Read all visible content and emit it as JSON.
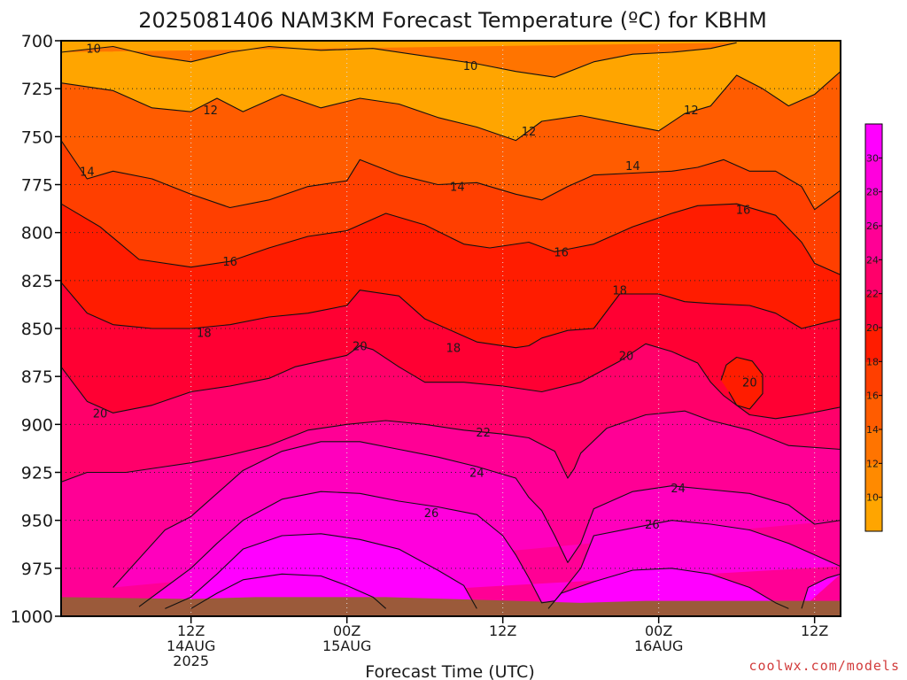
{
  "colors": {
    "ground": "#9b5a3a",
    "grid": "#222222",
    "frame": "#000000",
    "credit": "#d23c3c"
  },
  "chart_data": {
    "type": "heatmap",
    "title": "2025081406 NAM3KM Forecast Temperature (ºC) for KBHM",
    "xlabel": "Forecast Time (UTC)",
    "ylabel": "",
    "y_scale": "pressure (hPa), increasing downward",
    "ylim": [
      700,
      1000
    ],
    "xlim_hours_from_12Z_14AUG": [
      -10,
      50
    ],
    "y_ticks": [
      700,
      725,
      750,
      775,
      800,
      825,
      850,
      875,
      900,
      925,
      950,
      975,
      1000
    ],
    "x_ticks": [
      {
        "hour": 0,
        "lines": [
          "12Z",
          "14AUG",
          "2025"
        ]
      },
      {
        "hour": 12,
        "lines": [
          "00Z",
          "15AUG"
        ]
      },
      {
        "hour": 24,
        "lines": [
          "12Z"
        ]
      },
      {
        "hour": 36,
        "lines": [
          "00Z",
          "16AUG"
        ]
      },
      {
        "hour": 48,
        "lines": [
          "12Z"
        ]
      }
    ],
    "grid": true,
    "colorbar": {
      "placement": "right",
      "levels": [
        8,
        10,
        12,
        14,
        16,
        18,
        20,
        22,
        24,
        26,
        28,
        30,
        32
      ],
      "labels": [
        "10",
        "12",
        "14",
        "16",
        "18",
        "20",
        "22",
        "24",
        "26",
        "28",
        "30"
      ],
      "colors": [
        "#ffa500",
        "#ff8a00",
        "#ff7400",
        "#ff5c00",
        "#ff3f00",
        "#ff1c00",
        "#ff0033",
        "#ff006a",
        "#ff0095",
        "#ff00bd",
        "#ff00dd",
        "#ff00ff"
      ]
    },
    "series": [
      {
        "level": 10,
        "points": [
          [
            -10,
            706
          ],
          [
            -6,
            703
          ],
          [
            -3,
            708
          ],
          [
            0,
            711
          ],
          [
            3,
            706
          ],
          [
            6,
            703
          ],
          [
            10,
            705
          ],
          [
            14,
            704
          ],
          [
            18,
            708
          ],
          [
            22,
            712
          ],
          [
            25,
            716
          ],
          [
            28,
            719
          ],
          [
            31,
            711
          ],
          [
            34,
            707
          ],
          [
            37,
            706
          ],
          [
            40,
            704
          ],
          [
            42,
            701
          ]
        ]
      },
      {
        "level": 12,
        "points": [
          [
            -10,
            722
          ],
          [
            -6,
            726
          ],
          [
            -3,
            735
          ],
          [
            0,
            737
          ],
          [
            2,
            730
          ],
          [
            4,
            737
          ],
          [
            7,
            728
          ],
          [
            10,
            735
          ],
          [
            13,
            730
          ],
          [
            16,
            733
          ],
          [
            19,
            740
          ],
          [
            22,
            745
          ],
          [
            25,
            752
          ],
          [
            27,
            742
          ],
          [
            30,
            739
          ],
          [
            33,
            743
          ],
          [
            36,
            747
          ],
          [
            38,
            738
          ],
          [
            40,
            734
          ],
          [
            42,
            718
          ],
          [
            44,
            725
          ],
          [
            46,
            734
          ],
          [
            48,
            728
          ],
          [
            50,
            716
          ]
        ]
      },
      {
        "level": 14,
        "points": [
          [
            -10,
            752
          ],
          [
            -8,
            772
          ],
          [
            -6,
            768
          ],
          [
            -3,
            772
          ],
          [
            0,
            780
          ],
          [
            3,
            787
          ],
          [
            6,
            783
          ],
          [
            9,
            776
          ],
          [
            12,
            773
          ],
          [
            13,
            762
          ],
          [
            16,
            770
          ],
          [
            19,
            775
          ],
          [
            22,
            774
          ],
          [
            25,
            780
          ],
          [
            27,
            783
          ],
          [
            29,
            776
          ],
          [
            31,
            770
          ],
          [
            34,
            769
          ],
          [
            37,
            768
          ],
          [
            39,
            766
          ],
          [
            41,
            762
          ],
          [
            43,
            768
          ],
          [
            45,
            768
          ],
          [
            47,
            776
          ],
          [
            48,
            788
          ],
          [
            50,
            778
          ]
        ]
      },
      {
        "level": 16,
        "points": [
          [
            -10,
            785
          ],
          [
            -7,
            797
          ],
          [
            -4,
            814
          ],
          [
            0,
            818
          ],
          [
            3,
            815
          ],
          [
            6,
            808
          ],
          [
            9,
            802
          ],
          [
            12,
            799
          ],
          [
            15,
            790
          ],
          [
            18,
            796
          ],
          [
            21,
            806
          ],
          [
            23,
            808
          ],
          [
            26,
            805
          ],
          [
            28,
            810
          ],
          [
            31,
            806
          ],
          [
            34,
            797
          ],
          [
            37,
            790
          ],
          [
            39,
            786
          ],
          [
            42,
            785
          ],
          [
            45,
            791
          ],
          [
            47,
            805
          ],
          [
            48,
            816
          ],
          [
            50,
            822
          ]
        ]
      },
      {
        "level": 18,
        "points": [
          [
            -10,
            826
          ],
          [
            -8,
            842
          ],
          [
            -6,
            848
          ],
          [
            -3,
            850
          ],
          [
            0,
            850
          ],
          [
            3,
            848
          ],
          [
            6,
            844
          ],
          [
            9,
            842
          ],
          [
            12,
            838
          ],
          [
            13,
            830
          ],
          [
            16,
            833
          ],
          [
            18,
            845
          ],
          [
            20,
            851
          ],
          [
            22,
            857
          ],
          [
            25,
            860
          ],
          [
            26,
            859
          ],
          [
            27,
            855
          ],
          [
            29,
            851
          ],
          [
            31,
            850
          ],
          [
            33,
            832
          ],
          [
            36,
            832
          ],
          [
            38,
            836
          ],
          [
            40,
            837
          ],
          [
            43,
            838
          ],
          [
            45,
            842
          ],
          [
            47,
            850
          ],
          [
            50,
            845
          ]
        ]
      },
      {
        "level": 20,
        "points": [
          [
            -10,
            870
          ],
          [
            -8,
            888
          ],
          [
            -6,
            894
          ],
          [
            -3,
            890
          ],
          [
            0,
            883
          ],
          [
            3,
            880
          ],
          [
            6,
            876
          ],
          [
            8,
            870
          ],
          [
            10,
            867
          ],
          [
            12,
            864
          ],
          [
            13,
            859
          ],
          [
            14,
            861
          ],
          [
            16,
            870
          ],
          [
            18,
            878
          ],
          [
            21,
            878
          ],
          [
            24,
            880
          ],
          [
            27,
            883
          ],
          [
            30,
            878
          ],
          [
            33,
            867
          ],
          [
            35,
            858
          ],
          [
            37,
            862
          ],
          [
            39,
            868
          ],
          [
            40,
            878
          ],
          [
            41,
            885
          ],
          [
            43,
            895
          ],
          [
            45,
            897
          ],
          [
            47,
            895
          ],
          [
            50,
            891
          ]
        ]
      },
      {
        "level": 20,
        "points": [
          [
            40.8,
            877
          ],
          [
            41.2,
            869
          ],
          [
            42,
            865
          ],
          [
            43.2,
            867
          ],
          [
            44,
            874
          ],
          [
            44,
            884
          ],
          [
            43,
            892
          ],
          [
            42,
            890
          ],
          [
            41.4,
            883
          ]
        ]
      },
      {
        "level": 22,
        "points": [
          [
            -10,
            930
          ],
          [
            -8,
            925
          ],
          [
            -5,
            925
          ],
          [
            -2,
            922
          ],
          [
            0,
            920
          ],
          [
            3,
            916
          ],
          [
            6,
            911
          ],
          [
            9,
            903
          ],
          [
            12,
            900
          ],
          [
            15,
            898
          ],
          [
            18,
            900
          ],
          [
            21,
            903
          ],
          [
            24,
            905
          ],
          [
            26,
            907
          ],
          [
            28,
            914
          ],
          [
            29,
            928
          ],
          [
            29.5,
            923
          ],
          [
            30,
            915
          ],
          [
            32,
            902
          ],
          [
            35,
            895
          ],
          [
            38,
            893
          ],
          [
            40,
            898
          ],
          [
            43,
            903
          ],
          [
            46,
            911
          ],
          [
            50,
            913
          ]
        ]
      },
      {
        "level": 24,
        "points": [
          [
            -6,
            985
          ],
          [
            -4,
            970
          ],
          [
            -2,
            955
          ],
          [
            0,
            948
          ],
          [
            2,
            936
          ],
          [
            4,
            924
          ],
          [
            7,
            914
          ],
          [
            10,
            909
          ],
          [
            13,
            909
          ],
          [
            16,
            913
          ],
          [
            19,
            917
          ],
          [
            22,
            922
          ],
          [
            25,
            928
          ],
          [
            26,
            938
          ],
          [
            27,
            945
          ],
          [
            28,
            958
          ],
          [
            29,
            972
          ],
          [
            30,
            962
          ],
          [
            31,
            944
          ],
          [
            34,
            935
          ],
          [
            37,
            932
          ],
          [
            40,
            934
          ],
          [
            43,
            936
          ],
          [
            46,
            942
          ],
          [
            48,
            952
          ],
          [
            50,
            950
          ]
        ]
      },
      {
        "level": 26,
        "points": [
          [
            -4,
            995
          ],
          [
            -2,
            985
          ],
          [
            0,
            975
          ],
          [
            2,
            962
          ],
          [
            4,
            950
          ],
          [
            7,
            939
          ],
          [
            10,
            935
          ],
          [
            13,
            936
          ],
          [
            16,
            940
          ],
          [
            19,
            943
          ],
          [
            22,
            947
          ],
          [
            24,
            958
          ],
          [
            25,
            968
          ],
          [
            26,
            980
          ],
          [
            27,
            993
          ],
          [
            28,
            992
          ],
          [
            30,
            975
          ],
          [
            31,
            958
          ],
          [
            34,
            954
          ],
          [
            37,
            950
          ],
          [
            40,
            952
          ],
          [
            43,
            955
          ],
          [
            46,
            962
          ],
          [
            48,
            968
          ],
          [
            50,
            974
          ]
        ]
      },
      {
        "level": 28,
        "points": [
          [
            -2,
            996
          ],
          [
            0,
            990
          ],
          [
            2,
            978
          ],
          [
            4,
            965
          ],
          [
            7,
            958
          ],
          [
            10,
            957
          ],
          [
            13,
            960
          ],
          [
            16,
            965
          ],
          [
            19,
            976
          ],
          [
            21,
            984
          ],
          [
            22,
            996
          ]
        ]
      },
      {
        "level": 28,
        "points": [
          [
            27.5,
            996
          ],
          [
            28.5,
            988
          ],
          [
            31,
            982
          ],
          [
            34,
            976
          ],
          [
            37,
            975
          ],
          [
            40,
            978
          ],
          [
            43,
            985
          ],
          [
            45,
            993
          ],
          [
            46,
            996
          ]
        ]
      },
      {
        "level": 28,
        "points": [
          [
            47,
            996
          ],
          [
            47.5,
            985
          ],
          [
            49,
            980
          ],
          [
            50,
            978
          ]
        ]
      },
      {
        "level": 30,
        "points": [
          [
            0,
            996
          ],
          [
            2,
            988
          ],
          [
            4,
            981
          ],
          [
            7,
            978
          ],
          [
            10,
            979
          ],
          [
            12,
            984
          ],
          [
            14,
            990
          ],
          [
            15,
            996
          ]
        ]
      }
    ],
    "labels": [
      {
        "text": "10",
        "x": -7.5,
        "y": 704
      },
      {
        "text": "10",
        "x": 21.5,
        "y": 713
      },
      {
        "text": "12",
        "x": 1.5,
        "y": 736
      },
      {
        "text": "12",
        "x": 26,
        "y": 747
      },
      {
        "text": "12",
        "x": 38.5,
        "y": 736
      },
      {
        "text": "14",
        "x": -8,
        "y": 768
      },
      {
        "text": "14",
        "x": 20.5,
        "y": 776
      },
      {
        "text": "14",
        "x": 34,
        "y": 765
      },
      {
        "text": "16",
        "x": 3,
        "y": 815
      },
      {
        "text": "16",
        "x": 28.5,
        "y": 810
      },
      {
        "text": "16",
        "x": 42.5,
        "y": 788
      },
      {
        "text": "18",
        "x": 1,
        "y": 852
      },
      {
        "text": "18",
        "x": 20.2,
        "y": 860
      },
      {
        "text": "18",
        "x": 33,
        "y": 830
      },
      {
        "text": "20",
        "x": -7,
        "y": 894
      },
      {
        "text": "20",
        "x": 13,
        "y": 859
      },
      {
        "text": "20",
        "x": 33.5,
        "y": 864
      },
      {
        "text": "20",
        "x": 43,
        "y": 878
      },
      {
        "text": "22",
        "x": 22.5,
        "y": 904
      },
      {
        "text": "24",
        "x": 22,
        "y": 925
      },
      {
        "text": "24",
        "x": 37.5,
        "y": 933
      },
      {
        "text": "26",
        "x": 18.5,
        "y": 946
      },
      {
        "text": "26",
        "x": 35.5,
        "y": 952
      }
    ],
    "ground_surface": [
      [
        -10,
        990
      ],
      [
        0,
        991
      ],
      [
        5,
        990
      ],
      [
        10,
        990
      ],
      [
        15,
        990
      ],
      [
        20,
        991
      ],
      [
        25,
        992
      ],
      [
        30,
        993
      ],
      [
        35,
        992
      ],
      [
        40,
        992
      ],
      [
        45,
        992
      ],
      [
        50,
        992
      ]
    ]
  },
  "credit": "coolwx.com/models"
}
